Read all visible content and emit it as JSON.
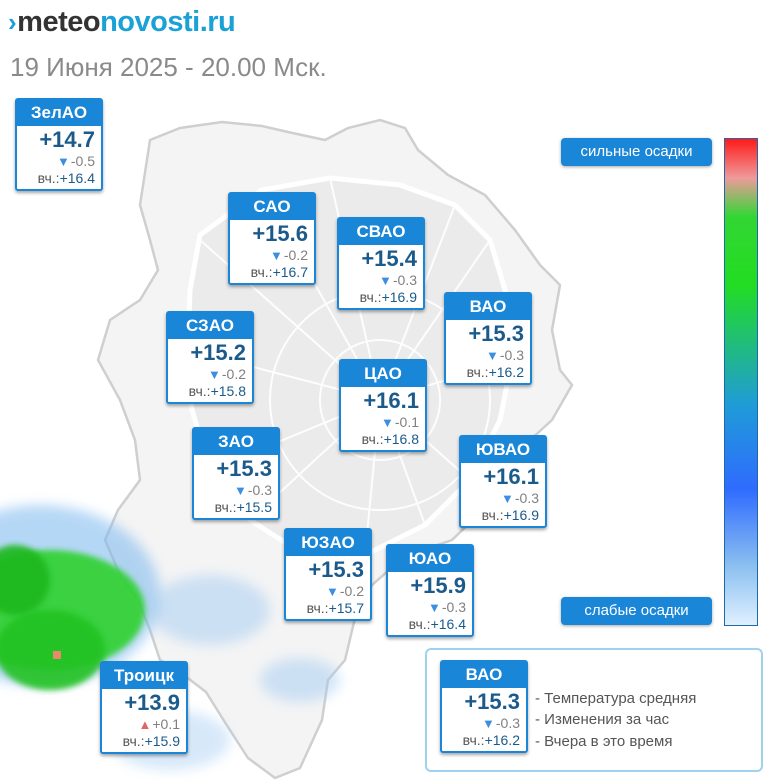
{
  "header": {
    "logo_mark": "›",
    "logo_part1": "meteo",
    "logo_part2": "novosti.ru",
    "subtitle": "19 Июня 2025 - 20.00 Мск."
  },
  "yesterday_label": "вч.:",
  "districts": [
    {
      "name": "ЗелАО",
      "temp": "+14.7",
      "change": "-0.5",
      "trend": "down",
      "yesterday": "+16.4"
    },
    {
      "name": "САО",
      "temp": "+15.6",
      "change": "-0.2",
      "trend": "down",
      "yesterday": "+16.7"
    },
    {
      "name": "СВАО",
      "temp": "+15.4",
      "change": "-0.3",
      "trend": "down",
      "yesterday": "+16.9"
    },
    {
      "name": "ВАО",
      "temp": "+15.3",
      "change": "-0.3",
      "trend": "down",
      "yesterday": "+16.2"
    },
    {
      "name": "СЗАО",
      "temp": "+15.2",
      "change": "-0.2",
      "trend": "down",
      "yesterday": "+15.8"
    },
    {
      "name": "ЦАО",
      "temp": "+16.1",
      "change": "-0.1",
      "trend": "down",
      "yesterday": "+16.8"
    },
    {
      "name": "ЗАО",
      "temp": "+15.3",
      "change": "-0.3",
      "trend": "down",
      "yesterday": "+15.5"
    },
    {
      "name": "ЮВАО",
      "temp": "+16.1",
      "change": "-0.3",
      "trend": "down",
      "yesterday": "+16.9"
    },
    {
      "name": "ЮЗАО",
      "temp": "+15.3",
      "change": "-0.2",
      "trend": "down",
      "yesterday": "+15.7"
    },
    {
      "name": "ЮАО",
      "temp": "+15.9",
      "change": "-0.3",
      "trend": "down",
      "yesterday": "+16.4"
    },
    {
      "name": "Троицк",
      "temp": "+13.9",
      "change": "+0.1",
      "trend": "up",
      "yesterday": "+15.9"
    }
  ],
  "scale": {
    "top_label": "сильные осадки",
    "bottom_label": "слабые осадки"
  },
  "legend": {
    "example": {
      "name": "ВАО",
      "temp": "+15.3",
      "change": "-0.3",
      "trend": "down",
      "yesterday": "+16.2"
    },
    "line1": "- Температура средняя",
    "line2": "- Изменения за час",
    "line3": "- Вчера в это время"
  },
  "colors": {
    "card_blue": "#1a86d8",
    "temp_blue": "#1b5b8c",
    "trend_down": "#3d8ee0",
    "trend_up": "#e06666",
    "precip_green": "#2ed12e"
  },
  "icons": {
    "trend_down": "down-triangle-icon",
    "trend_up": "up-triangle-icon"
  }
}
